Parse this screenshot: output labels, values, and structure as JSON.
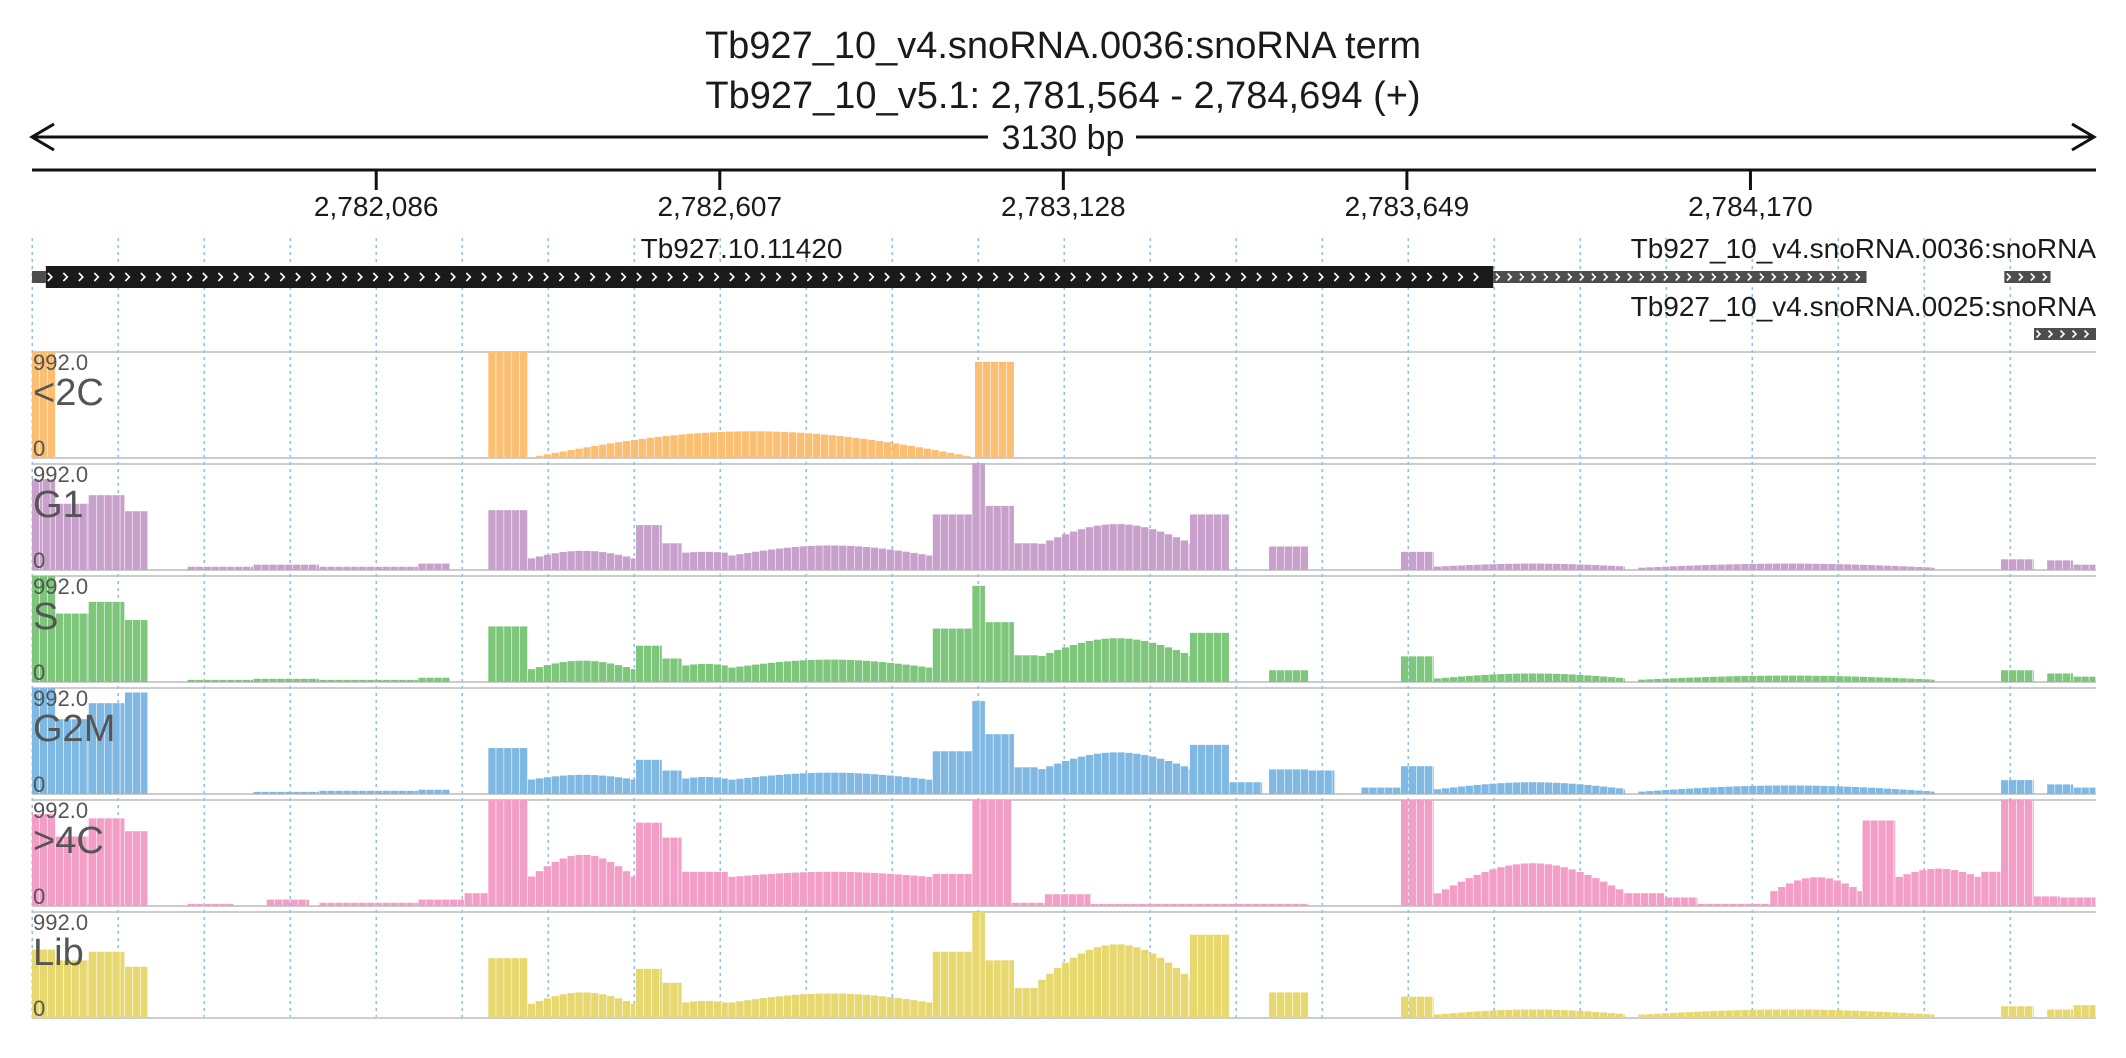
{
  "header": {
    "title": "Tb927_10_v4.snoRNA.0036:snoRNA  term",
    "locus": "Tb927_10_v5.1: 2,781,564 - 2,784,694 (+)",
    "span_label": "3130 bp"
  },
  "ruler": {
    "start": 2781564,
    "end": 2784694,
    "ticks": [
      {
        "value": 2782086,
        "label": "2,782,086"
      },
      {
        "value": 2782607,
        "label": "2,782,607"
      },
      {
        "value": 2783128,
        "label": "2,783,128"
      },
      {
        "value": 2783649,
        "label": "2,783,649"
      },
      {
        "value": 2784170,
        "label": "2,784,170"
      }
    ]
  },
  "genes": [
    {
      "name": "Tb927.10.11420",
      "start": 2781585,
      "end": 2783780,
      "strand": "+",
      "style": "main",
      "color": "#1a1a1a"
    },
    {
      "name": "Tb927_10_v4.snoRNA.0036:snoRNA",
      "start": 2783780,
      "end": 2784346,
      "strand": "+",
      "style": "minor",
      "color": "#4d4d4d"
    },
    {
      "name": "",
      "start": 2784555,
      "end": 2784625,
      "strand": "+",
      "style": "minor",
      "color": "#4d4d4d"
    },
    {
      "name": "Tb927_10_v4.snoRNA.0025:snoRNA",
      "start": 2784600,
      "end": 2784694,
      "strand": "+",
      "style": "minor",
      "color": "#4d4d4d"
    }
  ],
  "chart_data": {
    "type": "bar",
    "x_range": [
      2781564,
      2784694
    ],
    "ylim": [
      0,
      992.0
    ],
    "y_max_label": "992.0",
    "y_min_label": "0",
    "bin_bp": 12,
    "tracks": [
      {
        "name": "<2C",
        "color": "#fbbf74",
        "segments": [
          [
            2781564,
            2781600,
            992
          ],
          [
            2782256,
            2782316,
            992
          ],
          [
            2782316,
            2782994,
            0,
            0,
            250
          ],
          [
            2782994,
            2783054,
            900
          ]
        ]
      },
      {
        "name": "G1",
        "color": "#c7a0cb",
        "segments": [
          [
            2781564,
            2781580,
            850
          ],
          [
            2781580,
            2781600,
            850
          ],
          [
            2781600,
            2781650,
            620
          ],
          [
            2781650,
            2781705,
            700
          ],
          [
            2781705,
            2781740,
            550
          ],
          [
            2781800,
            2781900,
            30
          ],
          [
            2781900,
            2782000,
            50
          ],
          [
            2782000,
            2782150,
            30
          ],
          [
            2782150,
            2782198,
            60
          ],
          [
            2782256,
            2782316,
            560
          ],
          [
            2782316,
            2782480,
            0,
            100,
            180
          ],
          [
            2782480,
            2782520,
            420
          ],
          [
            2782520,
            2782550,
            250
          ],
          [
            2782550,
            2782620,
            0,
            160,
            170
          ],
          [
            2782620,
            2782930,
            0,
            130,
            230
          ],
          [
            2782930,
            2782990,
            520
          ],
          [
            2782990,
            2783010,
            1000
          ],
          [
            2783010,
            2783054,
            600
          ],
          [
            2783054,
            2783090,
            250
          ],
          [
            2783090,
            2783320,
            0,
            230,
            430
          ],
          [
            2783320,
            2783380,
            520
          ],
          [
            2783440,
            2783500,
            220
          ],
          [
            2783640,
            2783690,
            170
          ],
          [
            2783690,
            2783980,
            0,
            30,
            60
          ],
          [
            2784000,
            2784450,
            0,
            20,
            60
          ],
          [
            2784550,
            2784600,
            100
          ],
          [
            2784620,
            2784660,
            90
          ],
          [
            2784660,
            2784694,
            50
          ]
        ]
      },
      {
        "name": "S",
        "color": "#7dc67b",
        "segments": [
          [
            2781564,
            2781600,
            992
          ],
          [
            2781600,
            2781650,
            640
          ],
          [
            2781650,
            2781705,
            750
          ],
          [
            2781705,
            2781740,
            580
          ],
          [
            2781800,
            2781900,
            20
          ],
          [
            2781900,
            2782000,
            30
          ],
          [
            2782000,
            2782150,
            20
          ],
          [
            2782150,
            2782198,
            40
          ],
          [
            2782256,
            2782316,
            520
          ],
          [
            2782316,
            2782480,
            0,
            110,
            200
          ],
          [
            2782480,
            2782520,
            340
          ],
          [
            2782520,
            2782550,
            220
          ],
          [
            2782550,
            2782620,
            0,
            150,
            170
          ],
          [
            2782620,
            2782930,
            0,
            130,
            210
          ],
          [
            2782930,
            2782990,
            500
          ],
          [
            2782990,
            2783010,
            900
          ],
          [
            2783010,
            2783054,
            560
          ],
          [
            2783054,
            2783090,
            250
          ],
          [
            2783090,
            2783320,
            0,
            230,
            410
          ],
          [
            2783320,
            2783380,
            460
          ],
          [
            2783440,
            2783500,
            110
          ],
          [
            2783640,
            2783690,
            240
          ],
          [
            2783690,
            2783980,
            0,
            30,
            80
          ],
          [
            2784000,
            2784450,
            0,
            20,
            60
          ],
          [
            2784550,
            2784600,
            110
          ],
          [
            2784620,
            2784660,
            80
          ],
          [
            2784660,
            2784694,
            50
          ]
        ]
      },
      {
        "name": "G2M",
        "color": "#7fb9e3",
        "segments": [
          [
            2781564,
            2781600,
            992
          ],
          [
            2781600,
            2781650,
            700
          ],
          [
            2781650,
            2781705,
            850
          ],
          [
            2781705,
            2781740,
            950
          ],
          [
            2781900,
            2782000,
            20
          ],
          [
            2782000,
            2782150,
            30
          ],
          [
            2782150,
            2782198,
            40
          ],
          [
            2782256,
            2782316,
            430
          ],
          [
            2782316,
            2782480,
            0,
            130,
            180
          ],
          [
            2782480,
            2782520,
            320
          ],
          [
            2782520,
            2782550,
            220
          ],
          [
            2782550,
            2782620,
            0,
            140,
            160
          ],
          [
            2782620,
            2782930,
            0,
            130,
            200
          ],
          [
            2782930,
            2782990,
            400
          ],
          [
            2782990,
            2783010,
            870
          ],
          [
            2783010,
            2783054,
            560
          ],
          [
            2783054,
            2783090,
            250
          ],
          [
            2783090,
            2783320,
            0,
            220,
            390
          ],
          [
            2783320,
            2783380,
            460
          ],
          [
            2783380,
            2783430,
            110
          ],
          [
            2783440,
            2783500,
            230
          ],
          [
            2783500,
            2783540,
            220
          ],
          [
            2783580,
            2783640,
            60
          ],
          [
            2783640,
            2783690,
            260
          ],
          [
            2783690,
            2783980,
            0,
            40,
            110
          ],
          [
            2784000,
            2784450,
            0,
            20,
            80
          ],
          [
            2784550,
            2784600,
            130
          ],
          [
            2784620,
            2784660,
            90
          ],
          [
            2784660,
            2784694,
            60
          ]
        ]
      },
      {
        "name": ">4C",
        "color": "#f39ec6",
        "segments": [
          [
            2781564,
            2781600,
            860
          ],
          [
            2781600,
            2781650,
            650
          ],
          [
            2781650,
            2781705,
            820
          ],
          [
            2781705,
            2781740,
            700
          ],
          [
            2781800,
            2781870,
            20
          ],
          [
            2781920,
            2781985,
            60
          ],
          [
            2782000,
            2782150,
            30
          ],
          [
            2782150,
            2782220,
            60
          ],
          [
            2782220,
            2782256,
            120
          ],
          [
            2782256,
            2782316,
            992
          ],
          [
            2782316,
            2782480,
            0,
            250,
            480
          ],
          [
            2782480,
            2782520,
            780
          ],
          [
            2782520,
            2782550,
            640
          ],
          [
            2782550,
            2782620,
            320
          ],
          [
            2782620,
            2782930,
            0,
            270,
            320
          ],
          [
            2782930,
            2782990,
            300
          ],
          [
            2782990,
            2783050,
            992
          ],
          [
            2783050,
            2783100,
            30
          ],
          [
            2783100,
            2783170,
            110
          ],
          [
            2783170,
            2783330,
            20
          ],
          [
            2783330,
            2783500,
            20
          ],
          [
            2783640,
            2783690,
            992
          ],
          [
            2783690,
            2783980,
            0,
            100,
            400
          ],
          [
            2783980,
            2784040,
            120
          ],
          [
            2784040,
            2784090,
            80
          ],
          [
            2784090,
            2784200,
            20
          ],
          [
            2784200,
            2784340,
            0,
            120,
            270
          ],
          [
            2784340,
            2784390,
            800
          ],
          [
            2784390,
            2784520,
            0,
            260,
            350
          ],
          [
            2784520,
            2784550,
            320
          ],
          [
            2784550,
            2784600,
            992
          ],
          [
            2784600,
            2784640,
            90
          ],
          [
            2784640,
            2784694,
            80
          ]
        ]
      },
      {
        "name": "Lib",
        "color": "#e6d86f",
        "segments": [
          [
            2781564,
            2781600,
            640
          ],
          [
            2781600,
            2781650,
            540
          ],
          [
            2781650,
            2781705,
            620
          ],
          [
            2781705,
            2781740,
            480
          ],
          [
            2781800,
            2782200,
            10
          ],
          [
            2782256,
            2782316,
            560
          ],
          [
            2782316,
            2782480,
            0,
            120,
            240
          ],
          [
            2782480,
            2782520,
            460
          ],
          [
            2782520,
            2782550,
            330
          ],
          [
            2782550,
            2782620,
            0,
            140,
            160
          ],
          [
            2782620,
            2782930,
            0,
            140,
            230
          ],
          [
            2782930,
            2782990,
            620
          ],
          [
            2782990,
            2783010,
            992
          ],
          [
            2783010,
            2783054,
            540
          ],
          [
            2783054,
            2783090,
            280
          ],
          [
            2783090,
            2783320,
            0,
            330,
            690
          ],
          [
            2783320,
            2783380,
            780
          ],
          [
            2783440,
            2783500,
            240
          ],
          [
            2783640,
            2783690,
            200
          ],
          [
            2783690,
            2783980,
            0,
            30,
            80
          ],
          [
            2784000,
            2784450,
            0,
            30,
            80
          ],
          [
            2784550,
            2784600,
            110
          ],
          [
            2784620,
            2784660,
            80
          ],
          [
            2784660,
            2784694,
            120
          ]
        ]
      }
    ]
  }
}
